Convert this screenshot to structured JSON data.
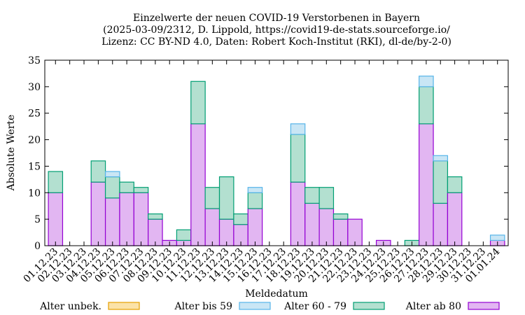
{
  "chart_data": {
    "type": "bar",
    "stacked": true,
    "title_lines": [
      "Einzelwerte der neuen COVID-19 Verstorbenen in Bayern",
      "(2025-03-09/2312, D. Lippold, https://covid19-de-stats.sourceforge.io/",
      "Lizenz: CC BY-ND 4.0, Daten: Robert Koch-Institut (RKI), dl-de/by-2-0)"
    ],
    "xlabel": "Meldedatum",
    "ylabel": "Absolute Werte",
    "ylim": [
      0,
      35
    ],
    "yticks": [
      0,
      5,
      10,
      15,
      20,
      25,
      30,
      35
    ],
    "categories": [
      "01.12.23",
      "02.12.23",
      "03.12.23",
      "04.12.23",
      "05.12.23",
      "06.12.23",
      "07.12.23",
      "08.12.23",
      "09.12.23",
      "10.12.23",
      "11.12.23",
      "12.12.23",
      "13.12.23",
      "14.12.23",
      "15.12.23",
      "16.12.23",
      "17.12.23",
      "18.12.23",
      "19.12.23",
      "20.12.23",
      "21.12.23",
      "22.12.23",
      "23.12.23",
      "24.12.23",
      "25.12.23",
      "26.12.23",
      "27.12.23",
      "28.12.23",
      "29.12.23",
      "30.12.23",
      "31.12.23",
      "01.01.24"
    ],
    "series": [
      {
        "name": "Alter ab 80",
        "color_fill": "#e2b6f2",
        "color_stroke": "#9400d3",
        "values": [
          10,
          0,
          0,
          12,
          9,
          10,
          10,
          5,
          1,
          1,
          23,
          7,
          5,
          4,
          7,
          0,
          0,
          12,
          8,
          7,
          5,
          5,
          0,
          1,
          0,
          0,
          23,
          8,
          10,
          0,
          0,
          1
        ]
      },
      {
        "name": "Alter 60 - 79",
        "color_fill": "#b3e0d0",
        "color_stroke": "#009e73",
        "values": [
          4,
          0,
          0,
          4,
          4,
          2,
          1,
          1,
          0,
          2,
          8,
          4,
          8,
          2,
          3,
          0,
          0,
          9,
          3,
          4,
          1,
          0,
          0,
          0,
          0,
          1,
          7,
          8,
          3,
          0,
          0,
          0
        ]
      },
      {
        "name": "Alter bis 59",
        "color_fill": "#c9e6f5",
        "color_stroke": "#56b4e9",
        "values": [
          0,
          0,
          0,
          0,
          1,
          0,
          0,
          0,
          0,
          0,
          0,
          0,
          0,
          0,
          1,
          0,
          0,
          2,
          0,
          0,
          0,
          0,
          0,
          0,
          0,
          0,
          2,
          1,
          0,
          0,
          0,
          1
        ]
      },
      {
        "name": "Alter unbek.",
        "color_fill": "#fbe2a8",
        "color_stroke": "#e69f00",
        "values": [
          0,
          0,
          0,
          0,
          0,
          0,
          0,
          0,
          0,
          0,
          0,
          0,
          0,
          0,
          0,
          0,
          0,
          0,
          0,
          0,
          0,
          0,
          0,
          0,
          0,
          0,
          0,
          0,
          0,
          0,
          0,
          0
        ]
      }
    ],
    "legend_order": [
      "Alter unbek.",
      "Alter bis 59",
      "Alter 60 - 79",
      "Alter ab 80"
    ],
    "legend_position": "bottom",
    "grid": false
  }
}
